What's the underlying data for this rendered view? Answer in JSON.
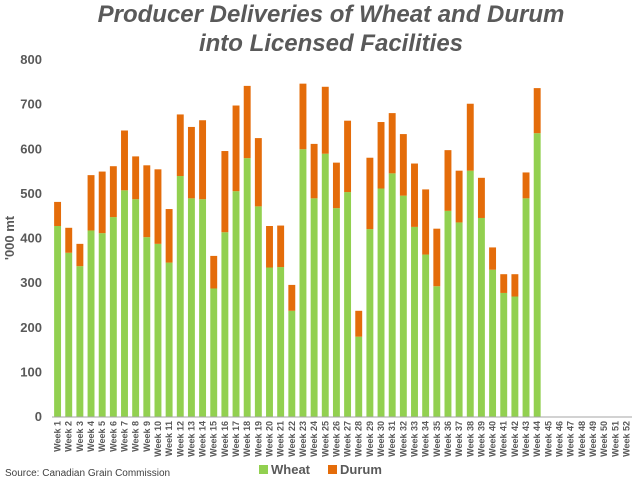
{
  "chart_data": {
    "type": "bar",
    "stacked": true,
    "title": [
      "Producer Deliveries of Wheat and Durum",
      "into Licensed Facilities"
    ],
    "ylabel": "'000 mt",
    "ylim": [
      0,
      800
    ],
    "yticks": [
      0,
      100,
      200,
      300,
      400,
      500,
      600,
      700,
      800
    ],
    "grid": false,
    "legend_position": "bottom",
    "source": "Source: Canadian Grain Commission",
    "categories": [
      "Week 1",
      "Week 2",
      "Week 3",
      "Week 4",
      "Week 5",
      "Week 6",
      "Week 7",
      "Week 8",
      "Week 9",
      "Week 10",
      "Week 11",
      "Week 12",
      "Week 13",
      "Week 14",
      "Week 15",
      "Week 16",
      "Week 17",
      "Week 18",
      "Week 19",
      "Week 20",
      "Week 21",
      "Week 22",
      "Week 23",
      "Week 24",
      "Week 25",
      "Week 26",
      "Week 27",
      "Week 28",
      "Week 29",
      "Week 30",
      "Week 31",
      "Week 32",
      "Week 33",
      "Week 34",
      "Week 35",
      "Week 36",
      "Week 37",
      "Week 38",
      "Week 39",
      "Week 40",
      "Week 41",
      "Week 42",
      "Week 43",
      "Week 44",
      "Week 45",
      "Week 46",
      "Week 47",
      "Week 48",
      "Week 49",
      "Week 50",
      "Week 51",
      "Week 52"
    ],
    "series": [
      {
        "name": "Wheat",
        "color": "#92d050",
        "values": [
          428,
          368,
          338,
          418,
          412,
          448,
          508,
          488,
          403,
          388,
          346,
          540,
          490,
          488,
          288,
          414,
          506,
          580,
          472,
          335,
          336,
          238,
          600,
          490,
          590,
          468,
          504,
          180,
          421,
          512,
          546,
          496,
          426,
          364,
          293,
          462,
          436,
          552,
          446,
          330,
          278,
          270,
          490,
          636,
          null,
          null,
          null,
          null,
          null,
          null,
          null,
          null
        ]
      },
      {
        "name": "Durum",
        "color": "#e46c0a",
        "values": [
          54,
          56,
          50,
          124,
          138,
          114,
          134,
          96,
          161,
          167,
          120,
          138,
          160,
          177,
          73,
          182,
          192,
          162,
          153,
          93,
          93,
          58,
          147,
          122,
          150,
          102,
          160,
          58,
          160,
          149,
          135,
          138,
          142,
          146,
          129,
          136,
          116,
          150,
          90,
          50,
          42,
          50,
          58,
          101,
          null,
          null,
          null,
          null,
          null,
          null,
          null,
          null
        ]
      }
    ]
  }
}
